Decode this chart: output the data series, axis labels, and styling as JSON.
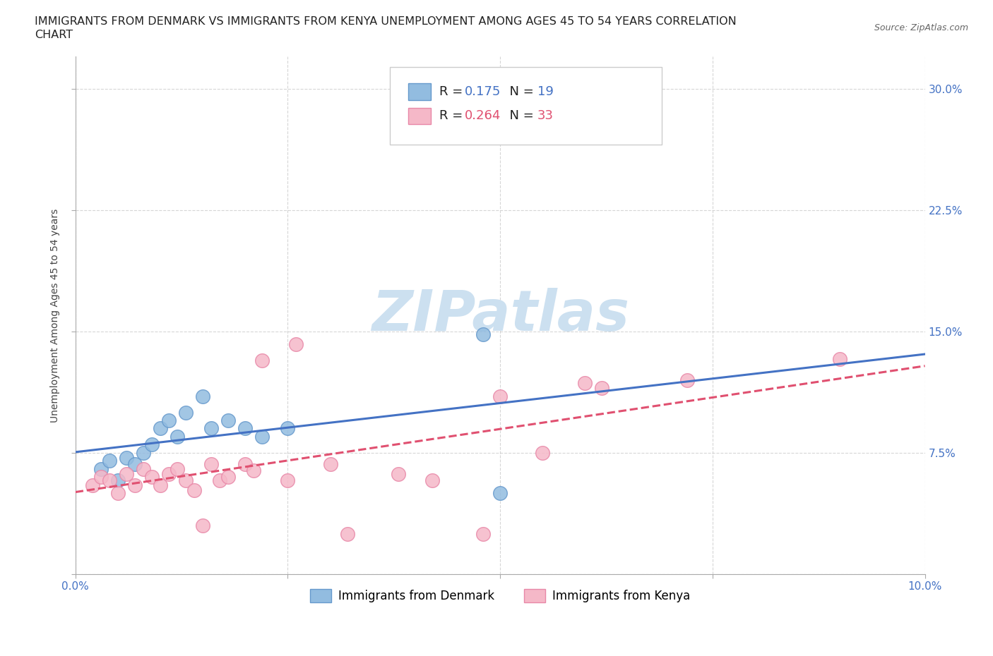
{
  "title_line1": "IMMIGRANTS FROM DENMARK VS IMMIGRANTS FROM KENYA UNEMPLOYMENT AMONG AGES 45 TO 54 YEARS CORRELATION",
  "title_line2": "CHART",
  "source_text": "Source: ZipAtlas.com",
  "ylabel": "Unemployment Among Ages 45 to 54 years",
  "xlim": [
    0.0,
    0.1
  ],
  "ylim": [
    0.0,
    0.32
  ],
  "xticks": [
    0.0,
    0.025,
    0.05,
    0.075,
    0.1
  ],
  "xticklabels": [
    "0.0%",
    "",
    "",
    "",
    "10.0%"
  ],
  "yticks": [
    0.0,
    0.075,
    0.15,
    0.225,
    0.3
  ],
  "yticklabels_right": [
    "",
    "7.5%",
    "15.0%",
    "22.5%",
    "30.0%"
  ],
  "denmark_color": "#92bce0",
  "kenya_color": "#f5b8c8",
  "denmark_edge": "#6699cc",
  "kenya_edge": "#e888a8",
  "denmark_line_color": "#4472c4",
  "kenya_line_color": "#e05070",
  "watermark_color": "#cce0f0",
  "R_denmark": "0.175",
  "N_denmark": "19",
  "R_kenya": "0.264",
  "N_kenya": "33",
  "denmark_x": [
    0.003,
    0.004,
    0.005,
    0.006,
    0.007,
    0.008,
    0.009,
    0.01,
    0.011,
    0.012,
    0.013,
    0.015,
    0.016,
    0.018,
    0.02,
    0.022,
    0.025,
    0.048,
    0.05
  ],
  "denmark_y": [
    0.065,
    0.07,
    0.058,
    0.072,
    0.068,
    0.075,
    0.08,
    0.09,
    0.095,
    0.085,
    0.1,
    0.11,
    0.09,
    0.095,
    0.09,
    0.085,
    0.09,
    0.148,
    0.05
  ],
  "kenya_x": [
    0.002,
    0.003,
    0.004,
    0.005,
    0.006,
    0.007,
    0.008,
    0.009,
    0.01,
    0.011,
    0.012,
    0.013,
    0.014,
    0.015,
    0.016,
    0.017,
    0.018,
    0.02,
    0.021,
    0.022,
    0.025,
    0.026,
    0.03,
    0.032,
    0.038,
    0.042,
    0.048,
    0.05,
    0.055,
    0.06,
    0.062,
    0.072,
    0.09
  ],
  "kenya_y": [
    0.055,
    0.06,
    0.058,
    0.05,
    0.062,
    0.055,
    0.065,
    0.06,
    0.055,
    0.062,
    0.065,
    0.058,
    0.052,
    0.03,
    0.068,
    0.058,
    0.06,
    0.068,
    0.064,
    0.132,
    0.058,
    0.142,
    0.068,
    0.025,
    0.062,
    0.058,
    0.025,
    0.11,
    0.075,
    0.118,
    0.115,
    0.12,
    0.133
  ],
  "background_color": "#ffffff",
  "grid_color": "#cccccc",
  "title_fontsize": 11.5,
  "axis_label_fontsize": 10,
  "tick_fontsize": 11,
  "tick_color": "#4472c4"
}
